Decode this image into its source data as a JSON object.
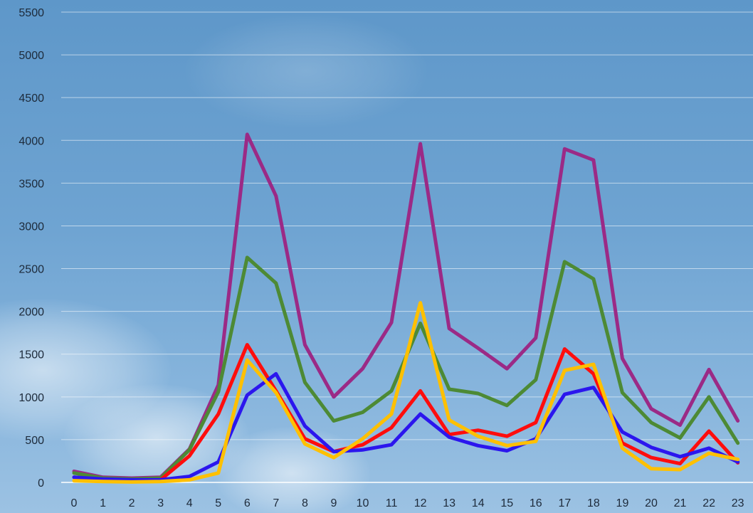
{
  "chart_data": {
    "type": "line",
    "title": "",
    "xlabel": "",
    "ylabel": "",
    "ylim": [
      0,
      5500
    ],
    "yticks": [
      0,
      500,
      1000,
      1500,
      2000,
      2500,
      3000,
      3500,
      4000,
      4500,
      5000,
      5500
    ],
    "x": [
      0,
      1,
      2,
      3,
      4,
      5,
      6,
      7,
      8,
      9,
      10,
      11,
      12,
      13,
      14,
      15,
      16,
      17,
      18,
      19,
      20,
      21,
      22,
      23
    ],
    "grid": true,
    "legend": "none",
    "series": [
      {
        "color": "#9b2a86",
        "values": [
          130,
          60,
          50,
          60,
          390,
          1140,
          4070,
          3350,
          1610,
          1000,
          1330,
          1870,
          3960,
          1800,
          1570,
          1330,
          1690,
          3900,
          3770,
          1450,
          860,
          670,
          1320,
          720
        ]
      },
      {
        "color": "#4d8a35",
        "values": [
          110,
          50,
          40,
          50,
          380,
          1060,
          2630,
          2330,
          1170,
          720,
          820,
          1070,
          1860,
          1090,
          1040,
          900,
          1200,
          2580,
          2380,
          1050,
          700,
          520,
          1000,
          460
        ]
      },
      {
        "color": "#ff0d0d",
        "values": [
          60,
          30,
          20,
          30,
          310,
          800,
          1610,
          1070,
          510,
          360,
          440,
          640,
          1070,
          560,
          610,
          540,
          700,
          1560,
          1270,
          460,
          290,
          220,
          600,
          230
        ]
      },
      {
        "color": "#2b16ee",
        "values": [
          60,
          40,
          30,
          30,
          70,
          240,
          1020,
          1270,
          660,
          360,
          380,
          440,
          800,
          530,
          430,
          370,
          510,
          1030,
          1110,
          590,
          410,
          300,
          400,
          240
        ]
      },
      {
        "color": "#ffc000",
        "values": [
          20,
          10,
          5,
          10,
          30,
          110,
          1430,
          1050,
          450,
          290,
          510,
          800,
          2100,
          730,
          540,
          430,
          480,
          1310,
          1380,
          400,
          160,
          150,
          340,
          270
        ]
      }
    ]
  }
}
